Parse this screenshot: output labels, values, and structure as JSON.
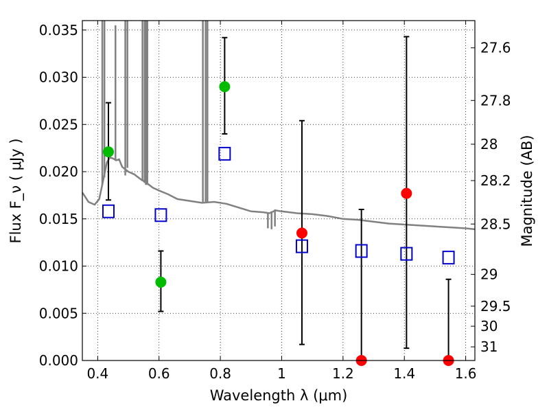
{
  "chart_data": {
    "type": "scatter",
    "xlabel": "Wavelength  λ (μm)",
    "ylabel": "Flux  F_ν  ( μJy )",
    "ylabel_right": "Magnitude (AB)",
    "xlim": [
      0.35,
      1.63
    ],
    "ylim": [
      0.0,
      0.036
    ],
    "grid": true,
    "x_ticks": [
      0.4,
      0.6,
      0.8,
      1.0,
      1.2,
      1.4,
      1.6
    ],
    "x_tick_labels": [
      "0.4",
      "0.6",
      "0.8",
      "1",
      "1.2",
      "1.4",
      "1.6"
    ],
    "y_ticks": [
      0.0,
      0.005,
      0.01,
      0.015,
      0.02,
      0.025,
      0.03,
      0.035
    ],
    "y_tick_labels": [
      "0.000",
      "0.005",
      "0.010",
      "0.015",
      "0.020",
      "0.025",
      "0.030",
      "0.035"
    ],
    "magnitude_ticks": [
      "27.6",
      "27.8",
      "28",
      "28.2",
      "28.5",
      "29",
      "29.5",
      "30",
      "31"
    ],
    "series": [
      {
        "kind": "detected",
        "color": "#00bb00",
        "points": [
          {
            "x": 0.435,
            "y": 0.0221,
            "err_low": 0.0051,
            "err_high": 0.0052
          },
          {
            "x": 0.606,
            "y": 0.0083,
            "err_low": 0.0031,
            "err_high": 0.0033
          },
          {
            "x": 0.814,
            "y": 0.029,
            "err_low": 0.005,
            "err_high": 0.0052
          }
        ]
      },
      {
        "kind": "low_significance",
        "color": "#ff0000",
        "points": [
          {
            "x": 1.066,
            "y": 0.0135,
            "err_low": 0.0118,
            "err_high": 0.0119
          },
          {
            "x": 1.26,
            "y": 0.0,
            "err_low": 0.0,
            "err_high": 0.016
          },
          {
            "x": 1.407,
            "y": 0.0177,
            "err_low": 0.0164,
            "err_high": 0.0166
          },
          {
            "x": 1.544,
            "y": 0.0,
            "err_low": 0.0,
            "err_high": 0.0086
          }
        ]
      },
      {
        "kind": "model_photometry",
        "color": "#0000cc",
        "marker": "open-square",
        "points": [
          {
            "x": 0.435,
            "y": 0.0158
          },
          {
            "x": 0.606,
            "y": 0.0154
          },
          {
            "x": 0.814,
            "y": 0.0219
          },
          {
            "x": 1.066,
            "y": 0.0121
          },
          {
            "x": 1.26,
            "y": 0.0116
          },
          {
            "x": 1.407,
            "y": 0.0113
          },
          {
            "x": 1.544,
            "y": 0.0109
          }
        ]
      }
    ],
    "spectrum": {
      "color": "#808080",
      "x": [
        0.35,
        0.37,
        0.39,
        0.405,
        0.42,
        0.43,
        0.44,
        0.45,
        0.46,
        0.47,
        0.48,
        0.5,
        0.52,
        0.54,
        0.56,
        0.58,
        0.6,
        0.63,
        0.66,
        0.7,
        0.74,
        0.78,
        0.82,
        0.86,
        0.9,
        0.94,
        0.96,
        0.98,
        1.0,
        1.05,
        1.1,
        1.15,
        1.2,
        1.25,
        1.3,
        1.35,
        1.4,
        1.45,
        1.5,
        1.55,
        1.6,
        1.63
      ],
      "y": [
        0.0178,
        0.0168,
        0.0165,
        0.0171,
        0.0194,
        0.021,
        0.0215,
        0.0214,
        0.0212,
        0.0213,
        0.0205,
        0.02,
        0.0197,
        0.0192,
        0.0188,
        0.0183,
        0.018,
        0.0176,
        0.0171,
        0.0169,
        0.0167,
        0.0168,
        0.0166,
        0.0162,
        0.0158,
        0.0157,
        0.0156,
        0.0159,
        0.0158,
        0.0156,
        0.0155,
        0.0153,
        0.015,
        0.0149,
        0.0147,
        0.0145,
        0.0144,
        0.0143,
        0.0142,
        0.0141,
        0.014,
        0.0139
      ]
    },
    "emission_lines": [
      {
        "x": 0.415,
        "y": 0.036,
        "base": 0.0186
      },
      {
        "x": 0.422,
        "y": 0.036,
        "base": 0.0194
      },
      {
        "x": 0.458,
        "y": 0.0355,
        "base": 0.0212
      },
      {
        "x": 0.49,
        "y": 0.036,
        "base": 0.0196
      },
      {
        "x": 0.497,
        "y": 0.036,
        "base": 0.0204
      },
      {
        "x": 0.546,
        "y": 0.036,
        "base": 0.019
      },
      {
        "x": 0.553,
        "y": 0.036,
        "base": 0.0188
      },
      {
        "x": 0.557,
        "y": 0.036,
        "base": 0.0186
      },
      {
        "x": 0.562,
        "y": 0.036,
        "base": 0.0186
      },
      {
        "x": 0.743,
        "y": 0.036,
        "base": 0.0168
      },
      {
        "x": 0.752,
        "y": 0.036,
        "base": 0.0168
      },
      {
        "x": 0.758,
        "y": 0.036,
        "base": 0.0168
      }
    ],
    "absorption_dips": [
      {
        "x": 0.955,
        "y": 0.014,
        "base": 0.0156
      },
      {
        "x": 0.967,
        "y": 0.0139,
        "base": 0.0158
      },
      {
        "x": 0.978,
        "y": 0.0142,
        "base": 0.016
      }
    ]
  }
}
